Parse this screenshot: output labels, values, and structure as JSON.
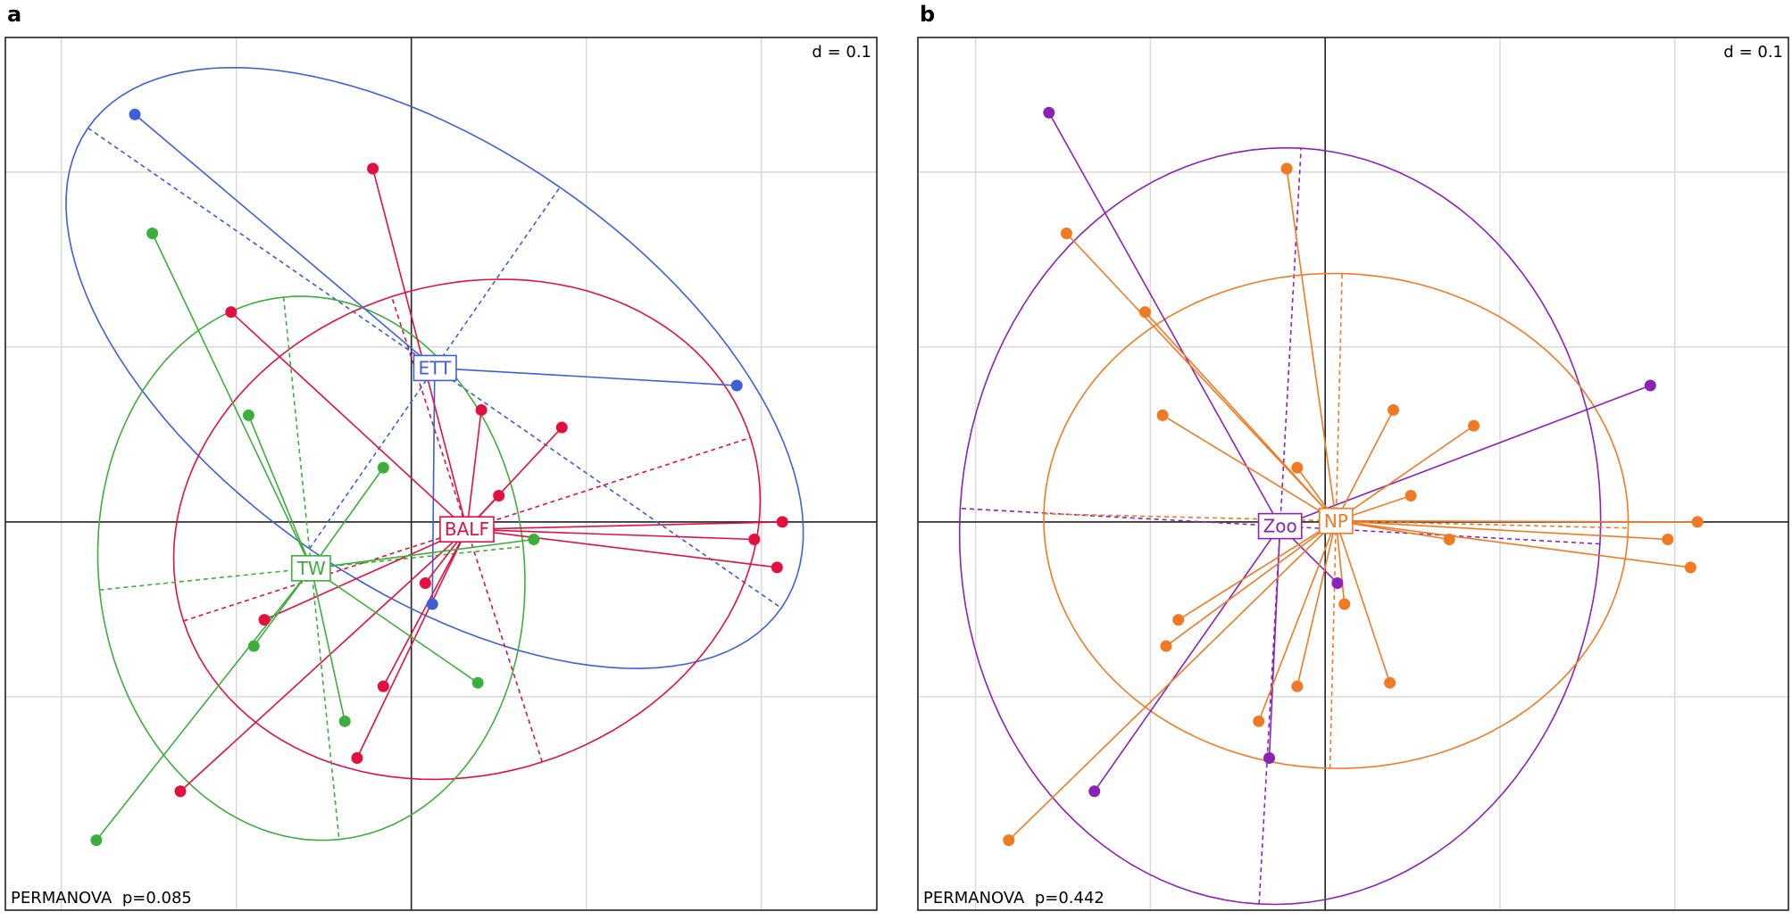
{
  "chart_data": [
    {
      "type": "scatter",
      "panel_label": "a",
      "scale_label": "d = 0.1",
      "annotation": "PERMANOVA  p=0.085",
      "xlim": [
        -0.232,
        0.266
      ],
      "ylim": [
        -0.222,
        0.277
      ],
      "xticks": [
        -0.2,
        -0.1,
        0,
        0.1,
        0.2
      ],
      "yticks": [
        -0.1,
        0,
        0.1,
        0.2
      ],
      "grid": true,
      "series": [
        {
          "name": "ETT",
          "color": "#3d5fd8",
          "x": [
            -0.158,
            0.186,
            0.012
          ],
          "values": [
            0.233,
            0.078,
            -0.047
          ]
        },
        {
          "name": "BALF",
          "color": "#e1103f",
          "x": [
            -0.022,
            -0.103,
            0.04,
            0.086,
            0.05,
            0.212,
            0.196,
            0.209,
            0.008,
            -0.016,
            -0.031,
            -0.084,
            -0.132
          ],
          "values": [
            0.202,
            0.12,
            0.064,
            0.054,
            0.015,
            0.0,
            -0.01,
            -0.026,
            -0.035,
            -0.094,
            -0.135,
            -0.056,
            -0.154
          ]
        },
        {
          "name": "TW",
          "color": "#3cae3c",
          "x": [
            -0.148,
            -0.093,
            -0.016,
            0.07,
            -0.09,
            0.038,
            -0.038,
            -0.18
          ],
          "values": [
            0.165,
            0.061,
            0.031,
            -0.01,
            -0.071,
            -0.092,
            -0.114,
            -0.182
          ]
        }
      ]
    },
    {
      "type": "scatter",
      "panel_label": "b",
      "scale_label": "d = 0.1",
      "annotation": "PERMANOVA  p=0.442",
      "xlim": [
        -0.233,
        0.265
      ],
      "ylim": [
        -0.222,
        0.277
      ],
      "xticks": [
        -0.2,
        -0.1,
        0,
        0.1,
        0.2
      ],
      "yticks": [
        -0.1,
        0,
        0.1,
        0.2
      ],
      "grid": true,
      "series": [
        {
          "name": "Zoo",
          "color": "#8a22b8",
          "x": [
            -0.158,
            0.186,
            0.007,
            -0.032,
            -0.132
          ],
          "values": [
            0.234,
            0.078,
            -0.035,
            -0.135,
            -0.154
          ]
        },
        {
          "name": "NP",
          "color": "#f07a24",
          "x": [
            -0.022,
            -0.148,
            -0.103,
            -0.093,
            0.039,
            0.085,
            -0.016,
            0.049,
            0.213,
            0.196,
            0.209,
            0.071,
            0.011,
            -0.084,
            -0.091,
            0.037,
            -0.016,
            -0.038,
            -0.181
          ],
          "values": [
            0.202,
            0.165,
            0.12,
            0.061,
            0.064,
            0.055,
            0.031,
            0.015,
            0.0,
            -0.01,
            -0.026,
            -0.01,
            -0.047,
            -0.056,
            -0.071,
            -0.092,
            -0.094,
            -0.114,
            -0.182
          ]
        }
      ]
    }
  ]
}
